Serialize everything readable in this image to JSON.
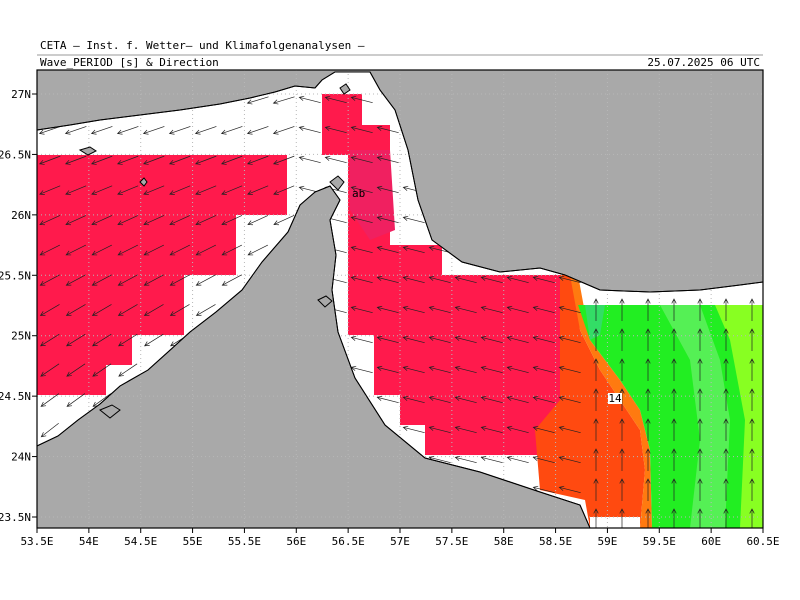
{
  "header": {
    "institute": "CETA — Inst. f. Wetter— und Klimafolgenanalysen —",
    "title": "Wave_PERIOD [s] & Direction",
    "date": "25.07.2025 06 UTC"
  },
  "map": {
    "lon_labels": [
      "53.5E",
      "54E",
      "54.5E",
      "55E",
      "55.5E",
      "56E",
      "56.5E",
      "57E",
      "57.5E",
      "58E",
      "58.5E",
      "59E",
      "59.5E",
      "60E",
      "60.5E"
    ],
    "lat_labels": [
      "27N",
      "26.5N",
      "26N",
      "25.5N",
      "25N",
      "24.5N",
      "24N",
      "23.5N"
    ],
    "contour_labels": [
      "14"
    ],
    "place_labels": [
      "ab"
    ]
  }
}
